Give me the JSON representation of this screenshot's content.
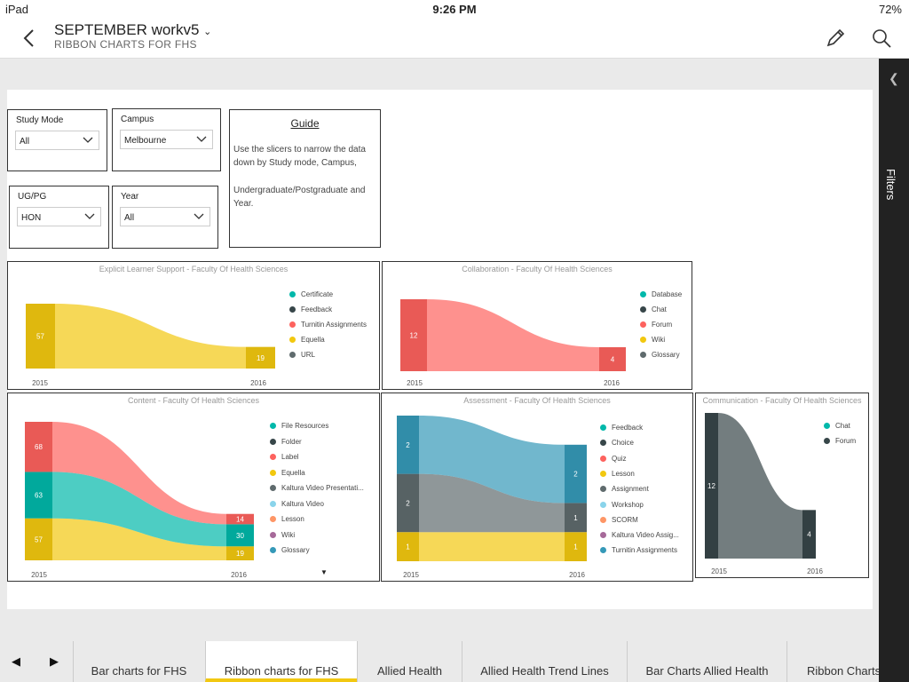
{
  "status_bar": {
    "device": "iPad",
    "time": "9:26 PM",
    "battery": "72%"
  },
  "header": {
    "title": "SEPTEMBER workv5",
    "subtitle": "RIBBON CHARTS FOR FHS"
  },
  "slicers": [
    {
      "label": "Study Mode",
      "value": "All"
    },
    {
      "label": "Campus",
      "value": "Melbourne"
    },
    {
      "label": "UG/PG",
      "value": "HON"
    },
    {
      "label": "Year",
      "value": "All"
    }
  ],
  "guide": {
    "title": "Guide",
    "lines": [
      "Use the slicers to narrow the data",
      "down by Study mode, Campus,",
      "Undergraduate/Postgraduate and",
      "Year."
    ]
  },
  "chart_data": [
    {
      "type": "ribbon",
      "title": "Explicit Learner Support - Faculty Of Health Sciences",
      "categories": [
        "2015",
        "2016"
      ],
      "legend": [
        "Certificate",
        "Feedback",
        "Turnitin Assignments",
        "Equella",
        "URL"
      ],
      "colors": [
        "#01b8aa",
        "#374649",
        "#fd625e",
        "#f2c80f",
        "#5f6b6d"
      ],
      "series": [
        {
          "name": "Equella",
          "color": "#f2c80f",
          "values": [
            57,
            19
          ],
          "labels": [
            "57",
            "19"
          ]
        }
      ]
    },
    {
      "type": "ribbon",
      "title": "Collaboration - Faculty Of Health Sciences",
      "categories": [
        "2015",
        "2016"
      ],
      "legend": [
        "Database",
        "Chat",
        "Forum",
        "Wiki",
        "Glossary"
      ],
      "colors": [
        "#01b8aa",
        "#374649",
        "#fd625e",
        "#f2c80f",
        "#5f6b6d"
      ],
      "series": [
        {
          "name": "Forum",
          "color": "#fd625e",
          "values": [
            12,
            4
          ],
          "labels": [
            "12",
            "4"
          ]
        }
      ]
    },
    {
      "type": "ribbon",
      "title": "Content - Faculty Of Health Sciences",
      "categories": [
        "2015",
        "2016"
      ],
      "legend": [
        "File Resources",
        "Folder",
        "Label",
        "Equella",
        "Kaltura Video Presentati...",
        "Kaltura Video",
        "Lesson",
        "Wiki",
        "Glossary"
      ],
      "colors": [
        "#01b8aa",
        "#374649",
        "#fd625e",
        "#f2c80f",
        "#5f6b6d",
        "#8ad4eb",
        "#fe9666",
        "#a66999",
        "#3599b8"
      ],
      "series": [
        {
          "name": "Equella",
          "color": "#f2c80f",
          "values": [
            57,
            19
          ],
          "labels": [
            "57",
            "19"
          ]
        },
        {
          "name": "File Resources",
          "color": "#01b8aa",
          "values": [
            63,
            30
          ],
          "labels": [
            "63",
            "30"
          ]
        },
        {
          "name": "Label",
          "color": "#fd625e",
          "values": [
            68,
            14
          ],
          "labels": [
            "68",
            "14"
          ]
        }
      ]
    },
    {
      "type": "ribbon",
      "title": "Assessment - Faculty Of Health Sciences",
      "categories": [
        "2015",
        "2016"
      ],
      "legend": [
        "Feedback",
        "Choice",
        "Quiz",
        "Lesson",
        "Assignment",
        "Workshop",
        "SCORM",
        "Kaltura Video Assig...",
        "Turnitin Assignments"
      ],
      "colors": [
        "#01b8aa",
        "#374649",
        "#fd625e",
        "#f2c80f",
        "#5f6b6d",
        "#8ad4eb",
        "#fe9666",
        "#a66999",
        "#3599b8"
      ],
      "series": [
        {
          "name": "Lesson",
          "color": "#f2c80f",
          "values": [
            1,
            1
          ],
          "labels": [
            "1",
            "1"
          ]
        },
        {
          "name": "Assignment",
          "color": "#5f6b6d",
          "values": [
            2,
            1
          ],
          "labels": [
            "2",
            "1"
          ]
        },
        {
          "name": "Turnitin Assignments",
          "color": "#3599b8",
          "values": [
            2,
            2
          ],
          "labels": [
            "2",
            "2"
          ]
        }
      ]
    },
    {
      "type": "ribbon",
      "title": "Communication - Faculty Of Health Sciences",
      "categories": [
        "2015",
        "2016"
      ],
      "legend": [
        "Chat",
        "Forum"
      ],
      "colors": [
        "#01b8aa",
        "#374649"
      ],
      "series": [
        {
          "name": "Forum",
          "color": "#374649",
          "values": [
            12,
            4
          ],
          "labels": [
            "12",
            "4"
          ]
        }
      ]
    }
  ],
  "filters_label": "Filters",
  "tabs": [
    {
      "label": "Bar charts for FHS"
    },
    {
      "label": "Ribbon charts for FHS",
      "active": true
    },
    {
      "label": "Allied Health"
    },
    {
      "label": "Allied Health Trend Lines"
    },
    {
      "label": "Bar Charts Allied Health"
    },
    {
      "label": "Ribbon Charts"
    }
  ]
}
